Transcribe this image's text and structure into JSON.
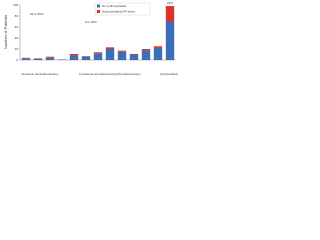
{
  "chart_data": {
    "type": "stacked_bar",
    "y_label": "Number of Patients",
    "categories": [
      null,
      null,
      null,
      null,
      null,
      null,
      null,
      null,
      null,
      null,
      null,
      null,
      null
    ],
    "series": [
      {
        "name": "No hydrocephalus",
        "color": "#3b6fb6",
        "values": [
          3,
          2,
          4,
          1,
          8,
          6,
          12,
          20,
          15,
          10,
          18,
          22,
          70
        ]
      },
      {
        "name": "Hydrocephalus/VP shunt",
        "color": "#d9342b",
        "values": [
          1,
          1,
          2,
          0,
          3,
          1,
          2,
          3,
          2,
          1,
          2,
          3,
          28
        ]
      }
    ],
    "ylim": [
      0,
      100
    ],
    "yticks": [
      0,
      20,
      40,
      60,
      80,
      100
    ],
    "annotations": [
      "33 to 50%",
      "0 to 20%",
      "29%"
    ],
    "groups": [
      "Anatomic hemispherectomy",
      "Functional hemispherectomy/hemispherotomy",
      "(Unspecified)"
    ],
    "legend": "top"
  }
}
